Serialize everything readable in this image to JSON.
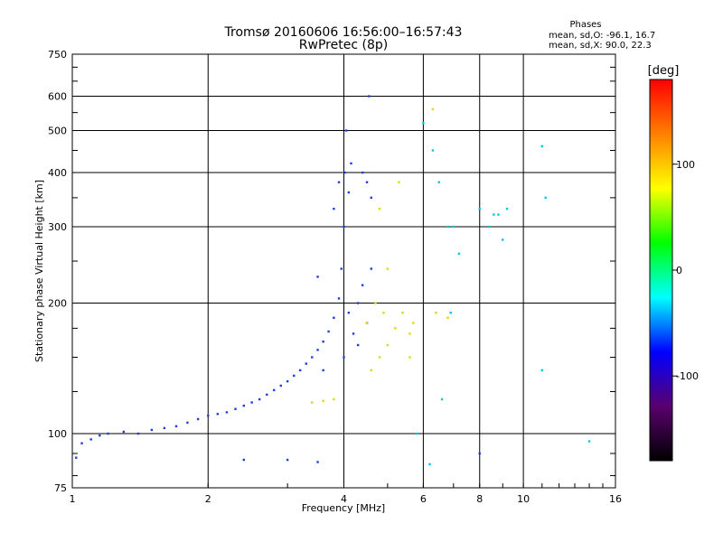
{
  "chart_data": {
    "type": "scatter",
    "title": "Tromsø 20160606 16:56:00–16:57:43",
    "subtitle": "RwPretec (8p)",
    "xlabel": "Frequency [MHz]",
    "ylabel": "Stationary phase Virtual Height [km]",
    "x_scale": "log",
    "y_scale": "log",
    "xlim": [
      1,
      16
    ],
    "ylim": [
      75,
      750
    ],
    "x_ticks": [
      {
        "value": 1,
        "label": "1"
      },
      {
        "value": 2,
        "label": "2"
      },
      {
        "value": 4,
        "label": "4"
      },
      {
        "value": 6,
        "label": "6"
      },
      {
        "value": 8,
        "label": "8"
      },
      {
        "value": 10,
        "label": "10"
      },
      {
        "value": 16,
        "label": "16"
      }
    ],
    "y_ticks": [
      {
        "value": 75,
        "label": "75"
      },
      {
        "value": 100,
        "label": "100"
      },
      {
        "value": 200,
        "label": "200"
      },
      {
        "value": 300,
        "label": "300"
      },
      {
        "value": 400,
        "label": "400"
      },
      {
        "value": 500,
        "label": "500"
      },
      {
        "value": 600,
        "label": "600"
      },
      {
        "value": 750,
        "label": "750"
      }
    ],
    "grid": true,
    "stats": {
      "heading": "Phases",
      "line1": "mean, sd,O: -96.1, 16.7",
      "line2": "mean, sd,X:  90.0, 22.3"
    },
    "colorbar": {
      "label": "[deg]",
      "range": [
        -180,
        180
      ],
      "ticks": [
        {
          "value": 100,
          "label": "100"
        },
        {
          "value": 0,
          "label": "0"
        },
        {
          "value": -100,
          "label": "-100"
        }
      ],
      "colors": [
        "#000000",
        "#5a006e",
        "#0000ff",
        "#00ffff",
        "#00ff00",
        "#ffff00",
        "#ff8000",
        "#ff0000"
      ]
    },
    "series": [
      {
        "mode": "O",
        "color": "#1f3de0",
        "points": [
          [
            1.02,
            88
          ],
          [
            1.05,
            95
          ],
          [
            1.1,
            97
          ],
          [
            1.15,
            99
          ],
          [
            1.2,
            100
          ],
          [
            1.3,
            101
          ],
          [
            1.4,
            100
          ],
          [
            1.5,
            102
          ],
          [
            1.6,
            103
          ],
          [
            1.7,
            104
          ],
          [
            1.8,
            106
          ],
          [
            1.9,
            108
          ],
          [
            2.0,
            110
          ],
          [
            2.1,
            111
          ],
          [
            2.2,
            112
          ],
          [
            2.3,
            114
          ],
          [
            2.4,
            116
          ],
          [
            2.5,
            118
          ],
          [
            2.6,
            120
          ],
          [
            2.7,
            123
          ],
          [
            2.8,
            126
          ],
          [
            2.9,
            129
          ],
          [
            3.0,
            132
          ],
          [
            3.1,
            136
          ],
          [
            3.2,
            140
          ],
          [
            3.3,
            145
          ],
          [
            3.4,
            150
          ],
          [
            3.5,
            156
          ],
          [
            3.6,
            163
          ],
          [
            3.7,
            172
          ],
          [
            3.8,
            185
          ],
          [
            3.9,
            205
          ],
          [
            3.95,
            240
          ],
          [
            4.0,
            300
          ],
          [
            4.02,
            400
          ],
          [
            4.05,
            500
          ],
          [
            4.1,
            360
          ],
          [
            4.15,
            420
          ],
          [
            4.2,
            170
          ],
          [
            4.3,
            200
          ],
          [
            4.4,
            400
          ],
          [
            4.5,
            380
          ],
          [
            4.55,
            600
          ],
          [
            4.6,
            350
          ],
          [
            3.8,
            330
          ],
          [
            3.9,
            380
          ],
          [
            4.0,
            150
          ],
          [
            4.1,
            190
          ],
          [
            4.3,
            160
          ],
          [
            4.4,
            220
          ],
          [
            4.5,
            180
          ],
          [
            3.6,
            140
          ],
          [
            3.5,
            230
          ],
          [
            4.6,
            240
          ],
          [
            8.0,
            90
          ],
          [
            3.0,
            87
          ],
          [
            2.4,
            87
          ],
          [
            3.5,
            86
          ]
        ]
      },
      {
        "mode": "X",
        "color": "#e0d800",
        "points": [
          [
            3.4,
            118
          ],
          [
            3.6,
            119
          ],
          [
            3.8,
            120
          ],
          [
            4.6,
            140
          ],
          [
            4.8,
            150
          ],
          [
            5.0,
            160
          ],
          [
            5.2,
            175
          ],
          [
            5.4,
            190
          ],
          [
            5.6,
            170
          ],
          [
            4.9,
            190
          ],
          [
            4.7,
            200
          ],
          [
            5.0,
            240
          ],
          [
            5.3,
            380
          ],
          [
            4.8,
            330
          ],
          [
            6.3,
            560
          ],
          [
            5.7,
            180
          ],
          [
            6.4,
            190
          ],
          [
            6.8,
            185
          ],
          [
            5.6,
            150
          ],
          [
            4.5,
            180
          ]
        ]
      },
      {
        "mode": "scattered",
        "color": "#00c8e0",
        "points": [
          [
            6.0,
            520
          ],
          [
            6.3,
            450
          ],
          [
            6.5,
            380
          ],
          [
            6.8,
            300
          ],
          [
            7.2,
            260
          ],
          [
            8.0,
            330
          ],
          [
            8.4,
            300
          ],
          [
            8.8,
            320
          ],
          [
            9.0,
            280
          ],
          [
            11.0,
            460
          ],
          [
            11.2,
            350
          ],
          [
            6.6,
            120
          ],
          [
            5.8,
            100
          ],
          [
            6.2,
            85
          ],
          [
            14.0,
            96
          ],
          [
            11.0,
            140
          ],
          [
            7.0,
            300
          ],
          [
            8.6,
            320
          ],
          [
            9.2,
            330
          ],
          [
            6.9,
            190
          ]
        ]
      }
    ]
  }
}
